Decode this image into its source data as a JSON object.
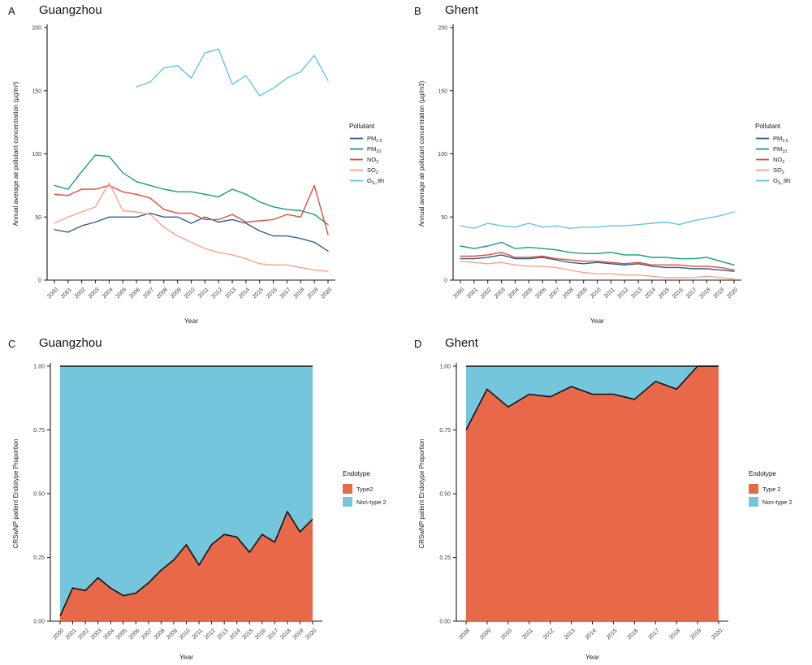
{
  "figure": {
    "background": "#ffffff"
  },
  "panels": [
    {
      "letter": "A",
      "title": "Guangzhou"
    },
    {
      "letter": "B",
      "title": "Ghent"
    },
    {
      "letter": "C",
      "title": "Guangzhou"
    },
    {
      "letter": "D",
      "title": "Ghent"
    }
  ],
  "colors": {
    "pm25": "#2F5F8F",
    "pm10": "#169E7C",
    "no2": "#E64B35",
    "so2": "#F7A488",
    "o3": "#64C5E8",
    "type2": "#E8684A",
    "nontype2": "#74C6DD",
    "axis": "#1a1a1a",
    "tick_text": "#3d3d3d"
  },
  "chart_data": [
    {
      "type": "line",
      "title": "Guangzhou",
      "xlabel": "Year",
      "ylabel": "Annual average air pollutant concentration (µg/m³)",
      "ylim": [
        0,
        200
      ],
      "yticks": [
        0,
        50,
        100,
        150,
        200
      ],
      "x": [
        2000,
        2001,
        2002,
        2003,
        2004,
        2005,
        2006,
        2007,
        2008,
        2009,
        2010,
        2011,
        2012,
        2013,
        2014,
        2015,
        2016,
        2017,
        2018,
        2019,
        2020
      ],
      "legend_title": "Pollutant",
      "legend_position": "right",
      "grid": false,
      "series": [
        {
          "name": "PM2.5",
          "segs": [
            [
              "PM",
              0
            ],
            [
              "2.5",
              1
            ]
          ],
          "color": "#2F5F8F",
          "values": [
            40,
            38,
            43,
            46,
            50,
            50,
            50,
            53,
            50,
            50,
            45,
            50,
            46,
            48,
            45,
            39,
            35,
            35,
            33,
            30,
            23
          ]
        },
        {
          "name": "PM10",
          "segs": [
            [
              "PM",
              0
            ],
            [
              "10",
              1
            ]
          ],
          "color": "#169E7C",
          "values": [
            75,
            72,
            86,
            99,
            98,
            85,
            78,
            75,
            72,
            70,
            70,
            68,
            66,
            72,
            68,
            62,
            58,
            56,
            55,
            52,
            44
          ]
        },
        {
          "name": "NO2",
          "segs": [
            [
              "NO",
              0
            ],
            [
              "2",
              1
            ]
          ],
          "color": "#E64B35",
          "values": [
            68,
            67,
            72,
            72,
            75,
            70,
            68,
            65,
            56,
            53,
            53,
            48,
            48,
            52,
            46,
            47,
            48,
            52,
            50,
            75,
            36
          ]
        },
        {
          "name": "SO2",
          "segs": [
            [
              "SO",
              0
            ],
            [
              "2",
              1
            ]
          ],
          "color": "#F7A488",
          "values": [
            45,
            50,
            54,
            58,
            77,
            55,
            54,
            52,
            42,
            35,
            30,
            25,
            22,
            20,
            17,
            13,
            12,
            12,
            10,
            8,
            7
          ]
        },
        {
          "name": "O3_8h",
          "segs": [
            [
              "O",
              0
            ],
            [
              "3",
              1
            ],
            [
              "_8h",
              0
            ]
          ],
          "color": "#64C5E8",
          "values": [
            null,
            null,
            null,
            null,
            null,
            null,
            153,
            157,
            168,
            170,
            160,
            180,
            183,
            155,
            162,
            146,
            152,
            160,
            165,
            178,
            158
          ]
        }
      ]
    },
    {
      "type": "line",
      "title": "Ghent",
      "xlabel": "Year",
      "ylabel": "Annual average air pollutant concentration (µg/m3)",
      "ylim": [
        0,
        200
      ],
      "yticks": [
        0,
        50,
        100,
        150,
        200
      ],
      "x": [
        2000,
        2001,
        2002,
        2003,
        2004,
        2005,
        2006,
        2007,
        2008,
        2009,
        2010,
        2011,
        2012,
        2013,
        2014,
        2015,
        2016,
        2017,
        2018,
        2019,
        2020
      ],
      "legend_title": "Pollutant",
      "legend_position": "right",
      "grid": false,
      "series": [
        {
          "name": "PM2.5",
          "segs": [
            [
              "PM",
              0
            ],
            [
              "2.5",
              1
            ]
          ],
          "color": "#2F5F8F",
          "values": [
            17,
            17,
            18,
            20,
            17,
            17,
            18,
            16,
            14,
            13,
            14,
            13,
            12,
            13,
            11,
            10,
            10,
            9,
            9,
            8,
            7
          ]
        },
        {
          "name": "PM10",
          "segs": [
            [
              "PM",
              0
            ],
            [
              "10",
              1
            ]
          ],
          "color": "#169E7C",
          "values": [
            27,
            25,
            27,
            30,
            25,
            26,
            25,
            24,
            22,
            21,
            21,
            22,
            20,
            20,
            18,
            18,
            17,
            17,
            18,
            15,
            12
          ]
        },
        {
          "name": "NO2",
          "segs": [
            [
              "NO",
              0
            ],
            [
              "2",
              1
            ]
          ],
          "color": "#E64B35",
          "values": [
            19,
            19,
            20,
            22,
            18,
            18,
            19,
            17,
            16,
            15,
            15,
            14,
            13,
            14,
            12,
            12,
            12,
            11,
            11,
            10,
            8
          ]
        },
        {
          "name": "SO2",
          "segs": [
            [
              "SO",
              0
            ],
            [
              "2",
              1
            ]
          ],
          "color": "#F7A488",
          "values": [
            15,
            14,
            13,
            14,
            12,
            11,
            11,
            10,
            8,
            6,
            5,
            5,
            4,
            4,
            3,
            2,
            2,
            2,
            3,
            2,
            1
          ]
        },
        {
          "name": "O3_8h",
          "segs": [
            [
              "O",
              0
            ],
            [
              "3",
              1
            ],
            [
              "_8h",
              0
            ]
          ],
          "color": "#64C5E8",
          "values": [
            43,
            41,
            45,
            43,
            42,
            45,
            42,
            43,
            41,
            42,
            42,
            43,
            43,
            44,
            45,
            46,
            44,
            47,
            49,
            51,
            54
          ]
        }
      ]
    },
    {
      "type": "area",
      "title": "Guangzhou",
      "xlabel": "Year",
      "ylabel": "CRSwNP patient Endotype Proportion",
      "ylim": [
        0,
        1
      ],
      "yticks": [
        0,
        0.25,
        0.5,
        0.75,
        1
      ],
      "ytick_labels": [
        "0.00",
        "0.25",
        "0.50",
        "0.75",
        "1.00"
      ],
      "x": [
        2000,
        2001,
        2002,
        2003,
        2004,
        2005,
        2006,
        2007,
        2008,
        2009,
        2010,
        2011,
        2012,
        2013,
        2014,
        2015,
        2016,
        2017,
        2018,
        2019,
        2020
      ],
      "legend_title": "Endotype",
      "legend_position": "right",
      "grid": false,
      "series": [
        {
          "name": "Type2",
          "color": "#E8684A",
          "values": [
            0.02,
            0.13,
            0.12,
            0.17,
            0.13,
            0.1,
            0.11,
            0.15,
            0.2,
            0.24,
            0.3,
            0.22,
            0.3,
            0.34,
            0.33,
            0.27,
            0.34,
            0.31,
            0.43,
            0.35,
            0.4
          ]
        },
        {
          "name": "Non-type 2",
          "color": "#74C6DD"
        }
      ]
    },
    {
      "type": "area",
      "title": "Ghent",
      "xlabel": "Year",
      "ylabel": "CRSwNP patient Endotype Proportion",
      "ylim": [
        0,
        1
      ],
      "yticks": [
        0,
        0.25,
        0.5,
        0.75,
        1
      ],
      "ytick_labels": [
        "0.00",
        "0.25",
        "0.50",
        "0.75",
        "1.00"
      ],
      "x": [
        2008,
        2009,
        2010,
        2011,
        2012,
        2013,
        2014,
        2015,
        2016,
        2017,
        2018,
        2019,
        2020
      ],
      "legend_title": "Endotype",
      "legend_position": "right",
      "grid": false,
      "series": [
        {
          "name": "Type 2",
          "color": "#E8684A",
          "values": [
            0.75,
            0.91,
            0.84,
            0.89,
            0.88,
            0.92,
            0.89,
            0.89,
            0.87,
            0.94,
            0.91,
            1.0,
            1.0
          ]
        },
        {
          "name": "Non-type 2",
          "color": "#74C6DD"
        }
      ]
    }
  ]
}
